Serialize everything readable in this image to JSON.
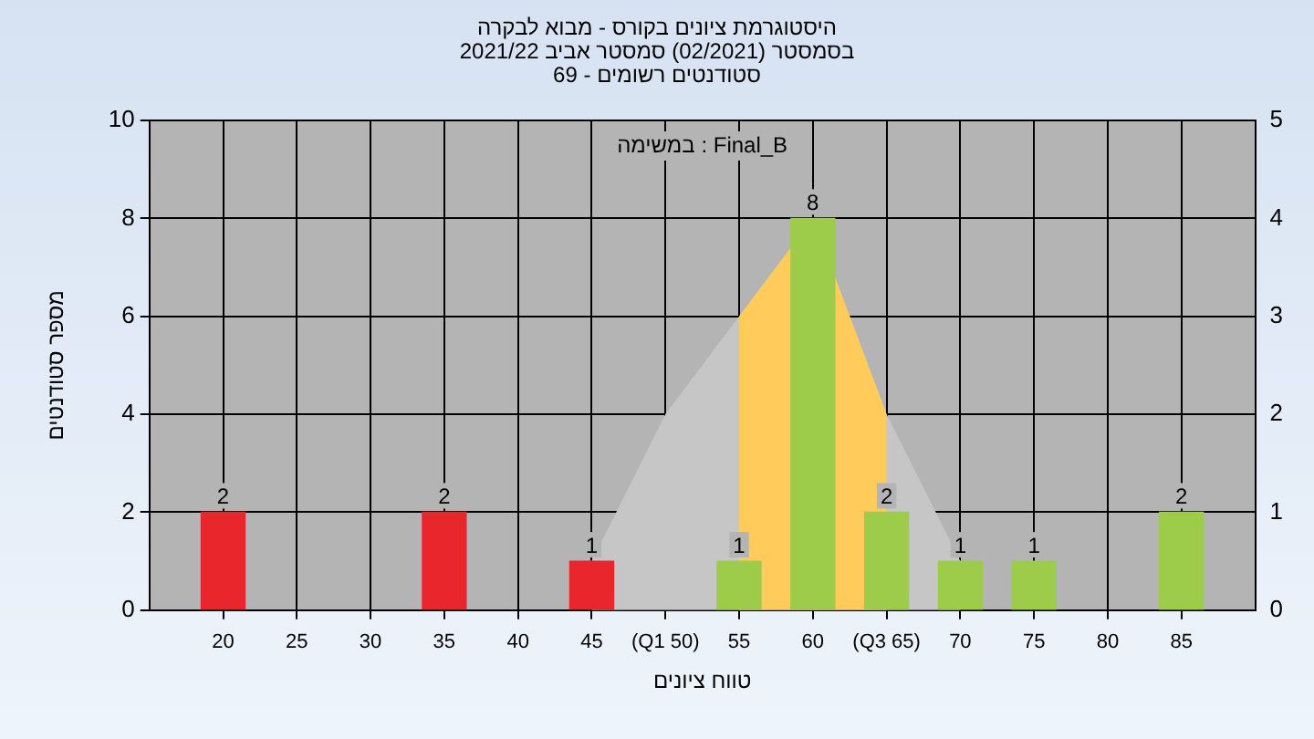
{
  "chart_data": {
    "type": "bar",
    "title": "היסטוגרמת ציונים בקורס - מבוא לבקרה",
    "subtitle": "בסמסטר (02/2021) סמסטר אביב 2021/22\nסטודנטים רשומים - 69",
    "xlabel": "טווח ציונים",
    "ylabel": "מספר סטודנטים",
    "annotations": [
      "במשימה : Final_B"
    ],
    "series": [
      {
        "type": "area",
        "axis": "y2",
        "color": "#c6c6c6",
        "x": [
          45,
          50,
          55,
          60,
          65,
          70
        ],
        "values": [
          0.5,
          2,
          3,
          4,
          2,
          0.5
        ]
      },
      {
        "type": "area",
        "axis": "y2",
        "color": "#ffcc5c",
        "x": [
          55,
          60,
          65
        ],
        "values": [
          3,
          4,
          2
        ]
      },
      {
        "type": "bar",
        "x": [
          20,
          35,
          45,
          55,
          60,
          65,
          70,
          75,
          85
        ],
        "values": [
          2,
          2,
          1,
          1,
          8,
          2,
          1,
          1,
          2
        ],
        "colors": [
          "#e8262b",
          "#e8262b",
          "#e8262b",
          "#9ccc4a",
          "#9ccc4a",
          "#9ccc4a",
          "#9ccc4a",
          "#9ccc4a",
          "#9ccc4a"
        ],
        "value_labels": [
          "2",
          "2",
          "1",
          "1",
          "8",
          "2",
          "1",
          "1",
          "2"
        ]
      }
    ],
    "xlim": [
      15,
      90
    ],
    "xticks": [
      20,
      25,
      30,
      35,
      40,
      45,
      {
        "value": 50,
        "label": "(Q1 50)"
      },
      55,
      60,
      {
        "value": 65,
        "label": "(Q3 65)"
      },
      70,
      75,
      80,
      85
    ],
    "ylim": [
      0,
      10
    ],
    "yticks": [
      0,
      2,
      4,
      6,
      8,
      10
    ],
    "y2lim": [
      0,
      5
    ],
    "y2ticks": [
      0,
      1,
      2,
      3,
      4,
      5
    ],
    "grid": true,
    "legend": false
  }
}
